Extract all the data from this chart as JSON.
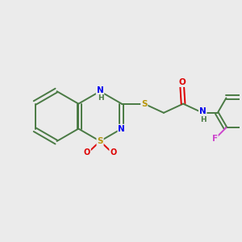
{
  "background_color": "#ebebeb",
  "bond_color": "#4a7a44",
  "atom_colors": {
    "S": "#b8960a",
    "N": "#0000ee",
    "O": "#dd0000",
    "F": "#cc44cc",
    "C": "#4a7a44"
  },
  "figsize": [
    3.0,
    3.0
  ],
  "dpi": 100
}
